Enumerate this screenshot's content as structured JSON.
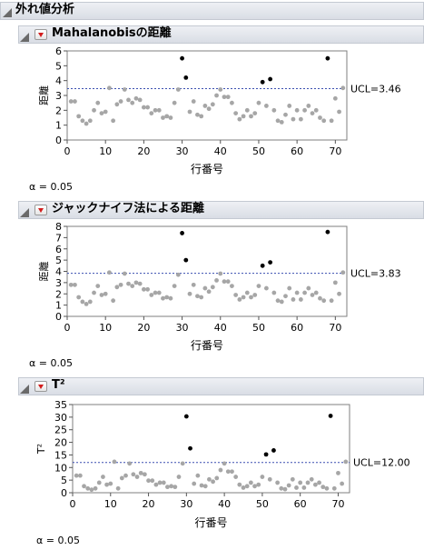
{
  "report": {
    "title": "外れ値分析"
  },
  "sections": [
    {
      "id": "mahalanobis",
      "title": "Mahalanobisの距離",
      "alpha_label": "α = 0.05",
      "ucl_label": "UCL=3.46",
      "chart_data": {
        "type": "scatter",
        "xlabel": "行番号",
        "ylabel": "距離",
        "xlim": [
          0,
          73
        ],
        "ylim": [
          0,
          6
        ],
        "xticks": [
          0,
          10,
          20,
          30,
          40,
          50,
          60,
          70
        ],
        "yticks": [
          0,
          1,
          2,
          3,
          4,
          5,
          6
        ],
        "ucl": 3.46,
        "values": [
          2.6,
          2.6,
          1.6,
          1.3,
          1.1,
          1.3,
          2.0,
          2.5,
          1.8,
          1.9,
          3.5,
          1.3,
          2.4,
          2.6,
          3.4,
          2.7,
          2.5,
          2.8,
          2.7,
          2.2,
          2.2,
          1.8,
          2.0,
          2.0,
          1.5,
          1.6,
          1.5,
          2.5,
          3.4,
          5.5,
          4.2,
          1.9,
          2.6,
          1.7,
          1.6,
          2.3,
          2.1,
          2.4,
          3.0,
          3.4,
          2.9,
          2.9,
          2.5,
          1.8,
          1.4,
          1.6,
          2.0,
          1.6,
          1.8,
          2.5,
          3.9,
          2.3,
          4.1,
          2.0,
          1.3,
          1.2,
          1.7,
          2.3,
          1.4,
          2.0,
          1.4,
          2.0,
          2.3,
          1.8,
          2.0,
          1.5,
          1.3,
          5.5,
          1.3,
          2.8,
          1.9,
          3.5
        ],
        "outliers": [
          30,
          31,
          51,
          53,
          68
        ]
      }
    },
    {
      "id": "jackknife",
      "title": "ジャックナイフ法による距離",
      "alpha_label": "α = 0.05",
      "ucl_label": "UCL=3.83",
      "chart_data": {
        "type": "scatter",
        "xlabel": "行番号",
        "ylabel": "距離",
        "xlim": [
          0,
          73
        ],
        "ylim": [
          0,
          8
        ],
        "xticks": [
          0,
          10,
          20,
          30,
          40,
          50,
          60,
          70
        ],
        "yticks": [
          0,
          1,
          2,
          3,
          4,
          5,
          6,
          7,
          8
        ],
        "ucl": 3.83,
        "values": [
          2.8,
          2.8,
          1.7,
          1.3,
          1.1,
          1.3,
          2.1,
          2.7,
          1.9,
          2.0,
          3.9,
          1.4,
          2.6,
          2.8,
          3.8,
          2.9,
          2.7,
          3.0,
          2.9,
          2.4,
          2.4,
          1.9,
          2.1,
          2.1,
          1.6,
          1.7,
          1.6,
          2.7,
          3.7,
          7.4,
          5.0,
          2.0,
          2.8,
          1.8,
          1.7,
          2.5,
          2.2,
          2.6,
          3.2,
          3.8,
          3.1,
          3.1,
          2.7,
          1.9,
          1.5,
          1.7,
          2.1,
          1.7,
          1.9,
          2.7,
          4.5,
          2.5,
          4.8,
          2.1,
          1.4,
          1.3,
          1.8,
          2.5,
          1.5,
          2.1,
          1.5,
          2.1,
          2.5,
          1.9,
          2.1,
          1.6,
          1.4,
          7.5,
          1.4,
          3.0,
          2.0,
          3.9
        ],
        "outliers": [
          30,
          31,
          51,
          53,
          68
        ]
      }
    },
    {
      "id": "t2",
      "title": "T²",
      "alpha_label": "α = 0.05",
      "ucl_label": "UCL=12.00",
      "chart_data": {
        "type": "scatter",
        "xlabel": "行番号",
        "ylabel": "T²",
        "xlim": [
          0,
          73
        ],
        "ylim": [
          0,
          35
        ],
        "xticks": [
          0,
          10,
          20,
          30,
          40,
          50,
          60,
          70
        ],
        "yticks": [
          0,
          5,
          10,
          15,
          20,
          25,
          30,
          35
        ],
        "ucl": 12.0,
        "values": [
          6.8,
          6.8,
          2.6,
          1.7,
          1.2,
          1.7,
          4.0,
          6.3,
          3.2,
          3.6,
          12.3,
          1.7,
          5.8,
          6.8,
          11.6,
          7.3,
          6.3,
          7.8,
          7.3,
          4.8,
          4.8,
          3.2,
          4.0,
          4.0,
          2.3,
          2.6,
          2.3,
          6.3,
          11.6,
          30.3,
          17.6,
          3.6,
          6.8,
          2.9,
          2.6,
          5.3,
          4.4,
          5.8,
          9.0,
          11.6,
          8.4,
          8.4,
          6.3,
          3.2,
          2.0,
          2.6,
          4.0,
          2.6,
          3.2,
          6.3,
          15.2,
          5.3,
          16.8,
          4.0,
          1.7,
          1.4,
          2.9,
          5.3,
          2.0,
          4.0,
          2.0,
          4.0,
          5.3,
          3.2,
          4.0,
          2.3,
          1.7,
          30.5,
          1.7,
          7.8,
          3.6,
          12.3
        ],
        "outliers": [
          30,
          31,
          51,
          53,
          68
        ]
      }
    }
  ],
  "colors": {
    "normal_point": "#a6a6a6",
    "outlier_point": "#000000",
    "ucl_line": "#3a4fb0",
    "frame": "#7f7f7f"
  }
}
